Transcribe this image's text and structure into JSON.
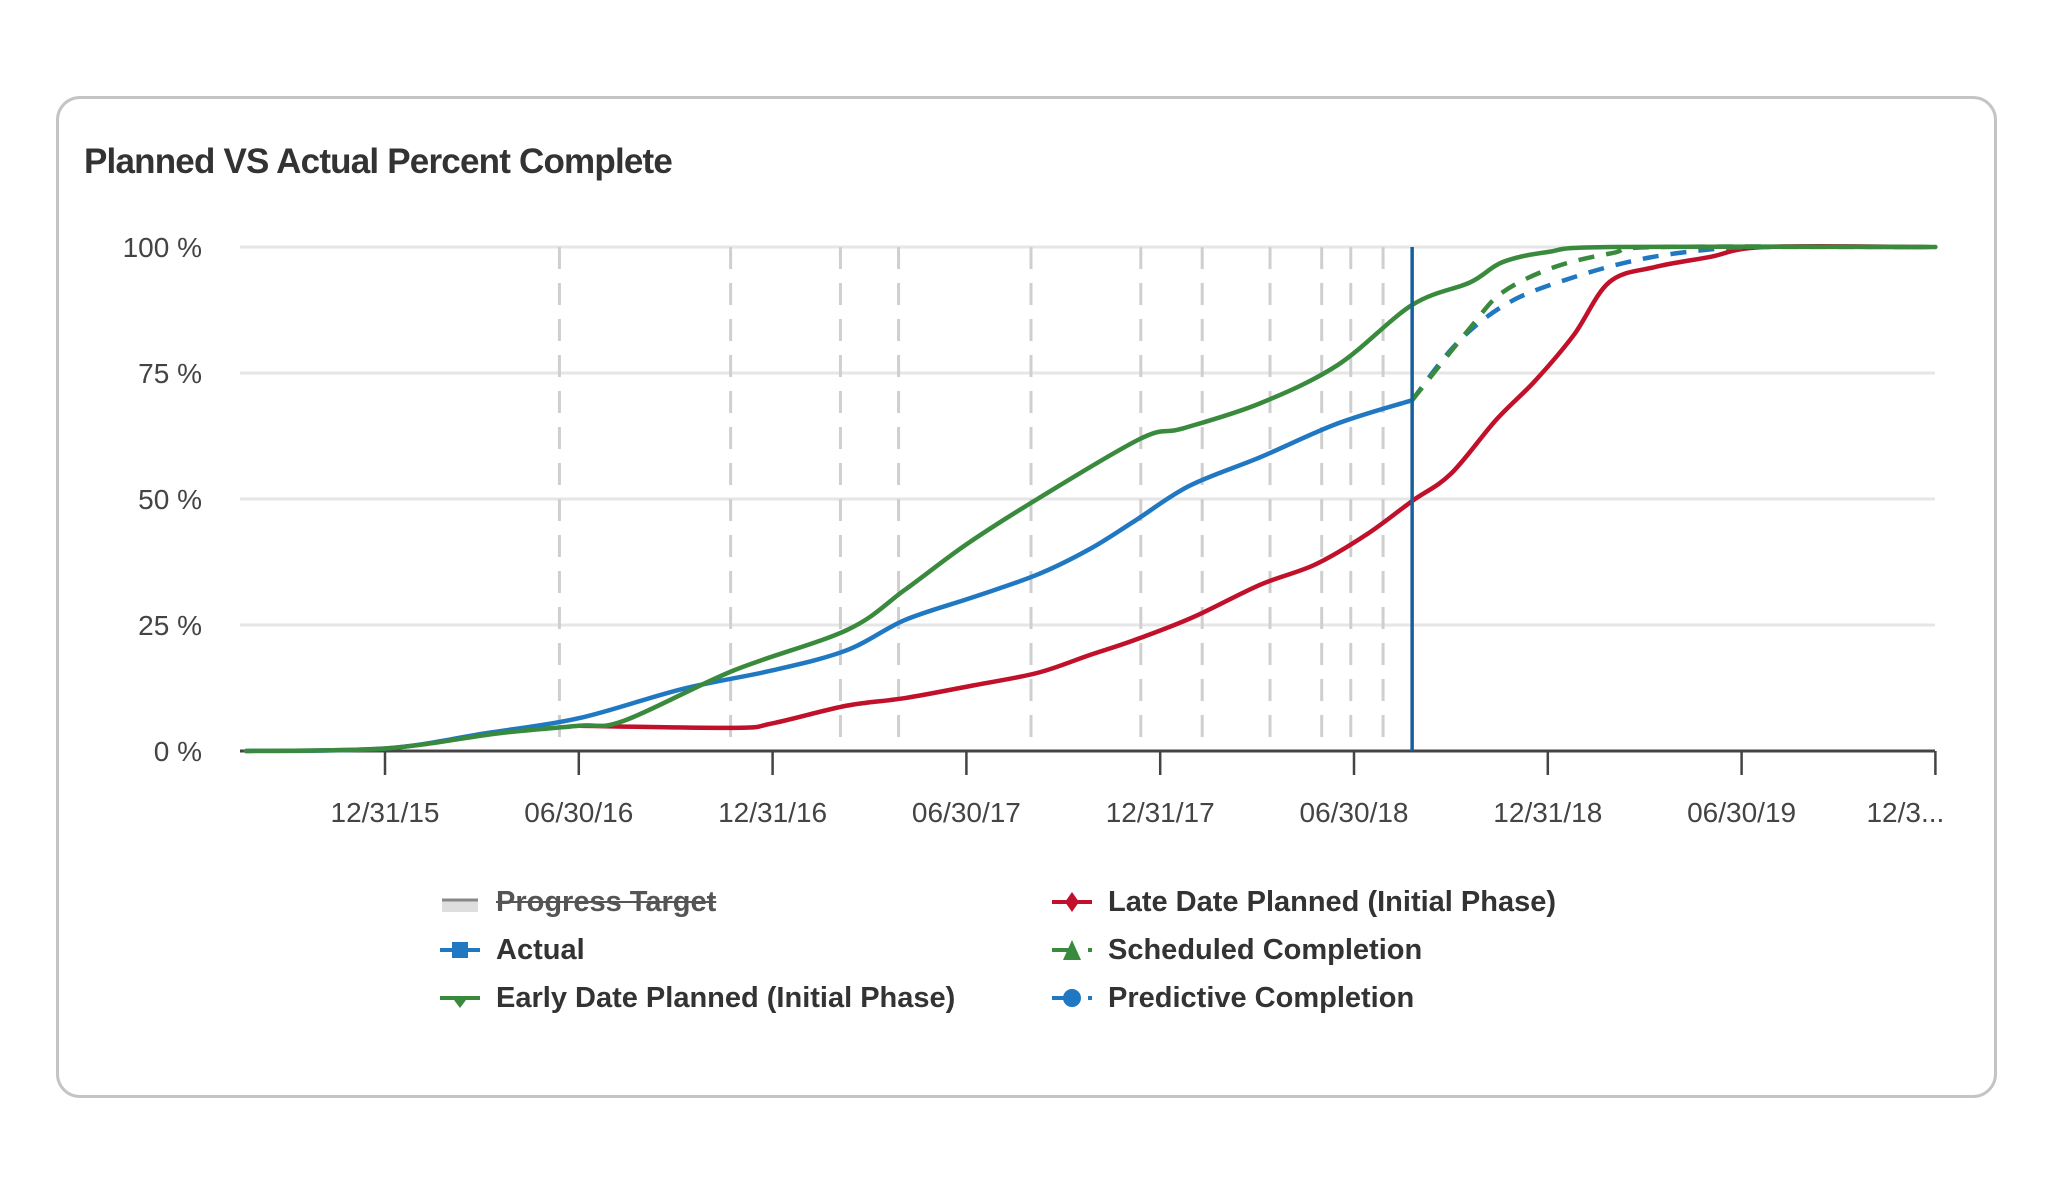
{
  "card": {
    "title": "Planned VS Actual Percent Complete"
  },
  "colors": {
    "actual": "#1f78c1",
    "early": "#3a8a3e",
    "late": "#c0102a",
    "scheduled": "#3a8a3e",
    "predictive": "#1f78c1",
    "today_line": "#17609c",
    "progress_target": "#b8b8b8",
    "grid": "#e6e6e6",
    "axis": "#444444"
  },
  "legend": {
    "items": [
      {
        "key": "progress_target",
        "label": "Progress Target",
        "hidden": true
      },
      {
        "key": "late",
        "label": "Late Date Planned (Initial Phase)",
        "hidden": false
      },
      {
        "key": "actual",
        "label": "Actual",
        "hidden": false
      },
      {
        "key": "scheduled",
        "label": "Scheduled Completion",
        "hidden": false
      },
      {
        "key": "early",
        "label": "Early Date Planned (Initial Phase)",
        "hidden": false
      },
      {
        "key": "predictive",
        "label": "Predictive Completion",
        "hidden": false
      }
    ]
  },
  "chart_data": {
    "type": "line",
    "title": "Planned VS Actual Percent Complete",
    "xlabel": "",
    "ylabel": "",
    "x_unit": "months since 12/31/15",
    "x_range": [
      -4.5,
      48
    ],
    "ylim": [
      0,
      100
    ],
    "y_ticks": [
      "0 %",
      "25 %",
      "50 %",
      "75 %",
      "100 %"
    ],
    "y_tick_values": [
      0,
      25,
      50,
      75,
      100
    ],
    "x_ticks": [
      "12/31/15",
      "06/30/16",
      "12/31/16",
      "06/30/17",
      "12/31/17",
      "06/30/18",
      "12/31/18",
      "06/30/19",
      "12/3..."
    ],
    "x_tick_positions": [
      0,
      6,
      12,
      18,
      24,
      30,
      36,
      42,
      48
    ],
    "grid": true,
    "legend_position": "bottom",
    "today_marker_x": 31.8,
    "progress_target_markers_x": [
      5.4,
      10.7,
      14.1,
      15.9,
      20,
      23.4,
      25.3,
      27.4,
      29,
      29.9,
      30.9
    ],
    "series": [
      {
        "name": "Early Date Planned (Initial Phase)",
        "key": "early",
        "style": "solid",
        "x": [
          -4.3,
          0,
          3.5,
          6,
          7.4,
          10.8,
          14.3,
          16.1,
          18,
          20.2,
          23.4,
          24.7,
          27.1,
          29.5,
          31.8,
          33.6,
          34.6,
          36,
          38,
          48
        ],
        "y": [
          0,
          0.5,
          3.5,
          5,
          6,
          16,
          24,
          32,
          41,
          50,
          62,
          64,
          69,
          76.6,
          88.5,
          93,
          97,
          99,
          100,
          100
        ]
      },
      {
        "name": "Actual",
        "key": "actual",
        "style": "solid",
        "x": [
          -4.3,
          0,
          3.1,
          6,
          9.2,
          12,
          14.3,
          16.1,
          18.2,
          20.2,
          21.8,
          23.2,
          24.9,
          27.1,
          29.5,
          31.8
        ],
        "y": [
          0,
          0.5,
          3.5,
          6.5,
          12.3,
          16,
          20,
          26,
          30.5,
          35,
          40,
          45.6,
          52.6,
          58.3,
          65,
          69.6
        ]
      },
      {
        "name": "Late Date Planned (Initial Phase)",
        "key": "late",
        "style": "solid",
        "x": [
          6,
          10.8,
          12,
          14.3,
          16.1,
          18.2,
          20.2,
          21.8,
          23.2,
          25,
          27.1,
          28.8,
          30.4,
          31.8,
          33,
          34.4,
          35.6,
          36.8,
          37.9,
          39.3,
          41,
          42.7,
          47.6
        ],
        "y": [
          5,
          4.6,
          5.5,
          9,
          10.5,
          13,
          15.5,
          19,
          22,
          26.5,
          33,
          37,
          43,
          49.6,
          55,
          65.7,
          73.4,
          82.5,
          93,
          96,
          98,
          100,
          100
        ]
      },
      {
        "name": "Scheduled Completion",
        "key": "scheduled",
        "style": "dashed",
        "x": [
          31.8,
          33.6,
          34.6,
          36.2,
          38,
          39.5,
          48
        ],
        "y": [
          69.6,
          84,
          91,
          96,
          98.8,
          100,
          100
        ]
      },
      {
        "name": "Predictive Completion",
        "key": "predictive",
        "style": "dashed",
        "x": [
          31.8,
          33.2,
          34.8,
          36.8,
          38.9,
          41,
          42.7,
          47.6
        ],
        "y": [
          69.6,
          81,
          89,
          94,
          97.6,
          99.5,
          100,
          100
        ]
      }
    ]
  }
}
